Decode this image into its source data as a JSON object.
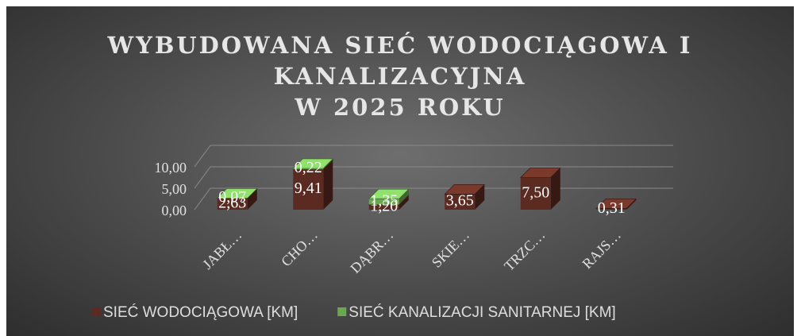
{
  "chart_data": {
    "type": "bar3d_stacked",
    "title": "WYBUDOWANA SIEĆ WODOCIĄGOWA I\nKANALIZACYJNA\nW 2025 ROKU",
    "categories": [
      "JABŁ…",
      "CHO…",
      "DĄBR…",
      "SKIE…",
      "TRZC…",
      "RAJS…"
    ],
    "series": [
      {
        "name": "SIEĆ WODOCIĄGOWA [KM]",
        "color": "#5b2a20",
        "values": [
          2.63,
          9.41,
          1.2,
          3.65,
          7.5,
          0.31
        ],
        "value_labels": [
          "2,63",
          "9,41",
          "1,20",
          "3,65",
          "7,50",
          "0,31"
        ]
      },
      {
        "name": "SIEĆ KANALIZACJI SANITARNEJ [KM]",
        "color": "#6aa84f",
        "values": [
          0.07,
          0.22,
          1.35,
          null,
          null,
          null
        ],
        "value_labels": [
          "0,07",
          "0,22",
          "1,35",
          null,
          null,
          null
        ]
      }
    ],
    "ylim": [
      0,
      10
    ],
    "yticks": [
      {
        "value": 0,
        "label": "0,00"
      },
      {
        "value": 5,
        "label": "5,00"
      },
      {
        "value": 10,
        "label": "10,00"
      }
    ],
    "grid": true,
    "legend": "bottom"
  }
}
